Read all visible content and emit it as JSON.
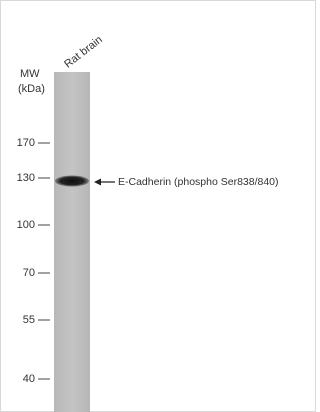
{
  "lane_label": "Rat brain",
  "mw_title": "MW",
  "mw_unit": "(kDa)",
  "markers": [
    170,
    130,
    100,
    70,
    55,
    40
  ],
  "band_label": "E-Cadherin (phospho Ser838/840)"
}
